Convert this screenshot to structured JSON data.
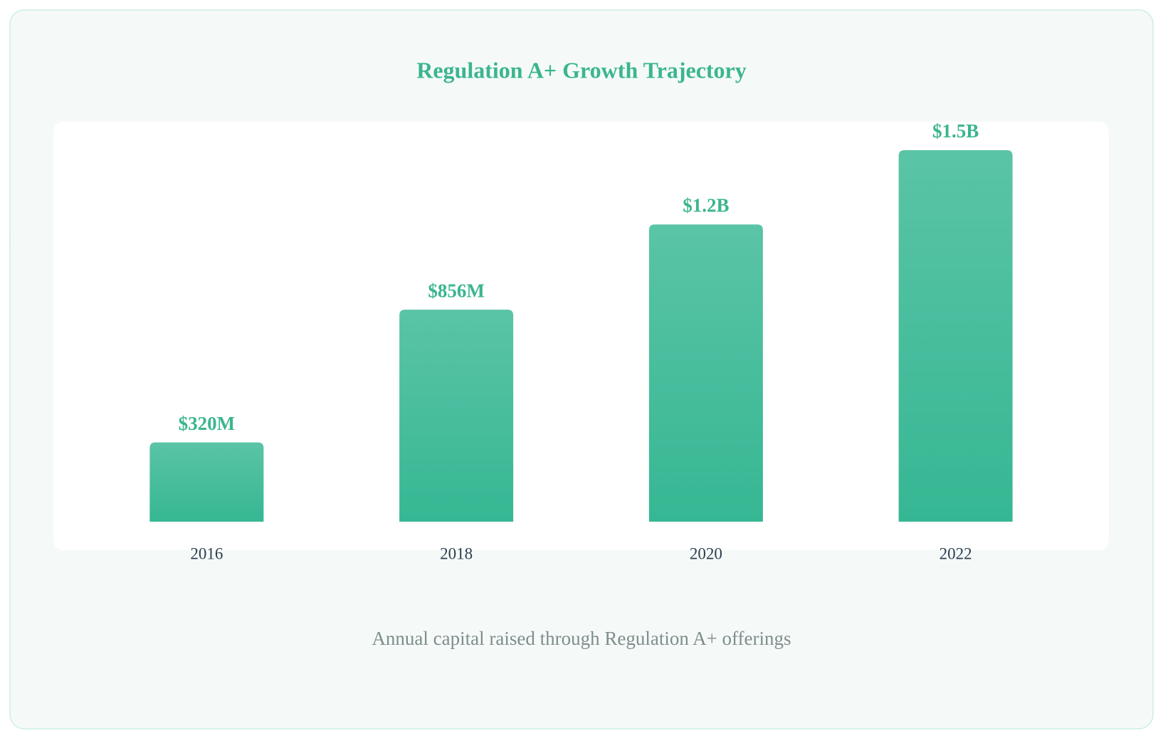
{
  "chart_data": {
    "type": "bar",
    "title": "Regulation A+ Growth Trajectory",
    "categories": [
      "2016",
      "2018",
      "2020",
      "2022"
    ],
    "values": [
      320000000,
      856000000,
      1200000000,
      1500000000
    ],
    "value_labels": [
      "$320M",
      "$856M",
      "$1.2B",
      "$1.5B"
    ],
    "color": "#36b793",
    "caption": "Annual capital raised through Regulation A+ offerings"
  }
}
